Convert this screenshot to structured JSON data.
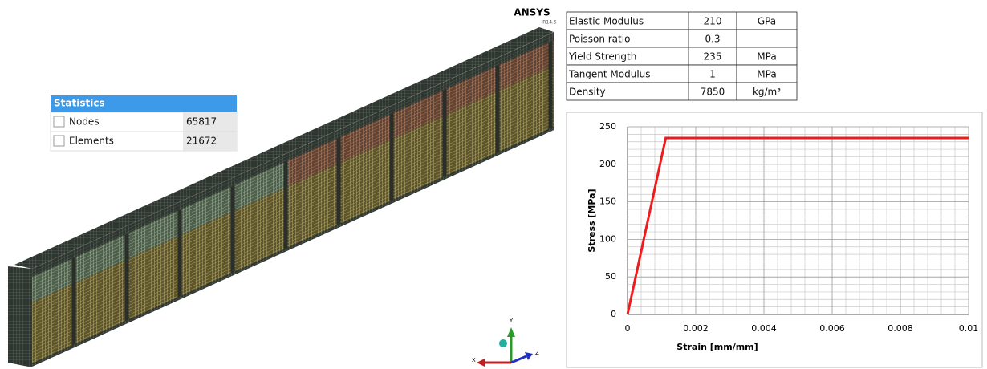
{
  "brand": {
    "name": "ANSYS",
    "version": "R14.5"
  },
  "statistics": {
    "title": "Statistics",
    "rows": [
      [
        "Nodes",
        65817
      ],
      [
        "Elements",
        21672
      ]
    ]
  },
  "material": {
    "rows": [
      [
        "Elastic Modulus",
        210,
        "GPa"
      ],
      [
        "Poisson ratio",
        0.3,
        null
      ],
      [
        "Yield Strength",
        235,
        "MPa"
      ],
      [
        "Tangent Modulus",
        1,
        "MPa"
      ],
      [
        "Density",
        7850,
        "kg/m³"
      ]
    ]
  },
  "triad": {
    "x": "X",
    "y": "Y",
    "z": "Z"
  },
  "chart_data": {
    "type": "line",
    "x_label": "Strain [mm/mm]",
    "y_label": "Stress [MPa]",
    "x": [
      0,
      0.00112,
      0.01
    ],
    "values": [
      0,
      235,
      235
    ],
    "color": "#ee1c1c",
    "xlim": [
      0,
      0.01
    ],
    "ylim": [
      0,
      250
    ],
    "xticks": [
      0,
      0.002,
      0.004,
      0.006,
      0.008,
      0.01
    ],
    "yticks": [
      0,
      50,
      100,
      150,
      200,
      250
    ],
    "grid": true,
    "minor_divisions": 5
  }
}
